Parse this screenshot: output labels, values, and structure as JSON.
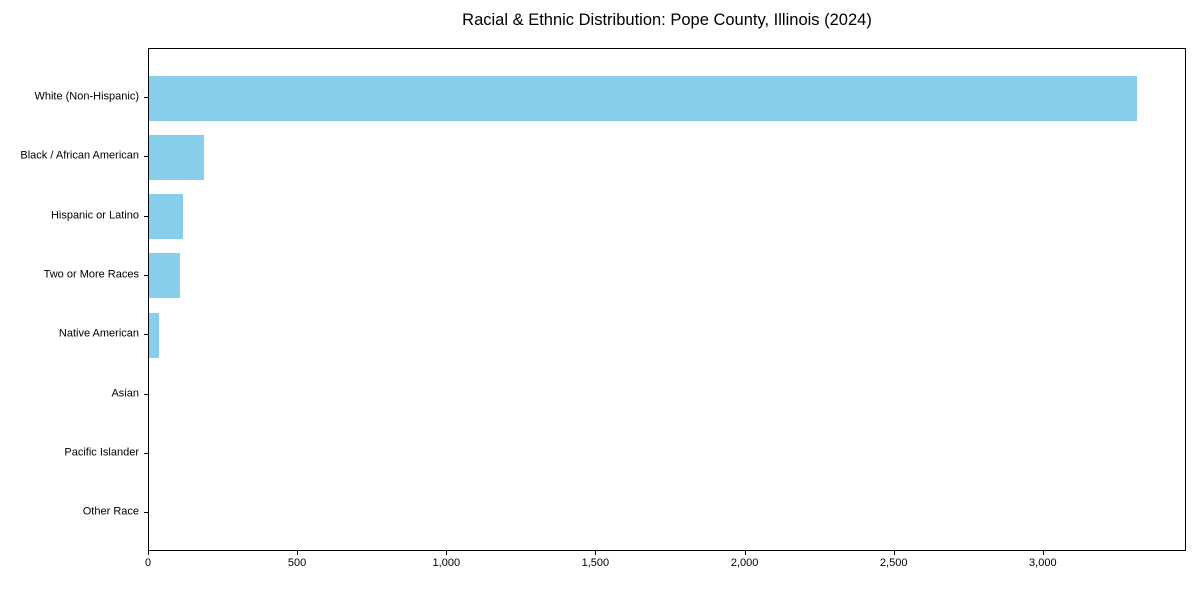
{
  "figure": {
    "background": "#ffffff"
  },
  "chart_data": {
    "type": "bar",
    "orientation": "horizontal",
    "title": "Racial & Ethnic Distribution: Pope County, Illinois (2024)",
    "categories": [
      "White (Non-Hispanic)",
      "Black / African American",
      "Hispanic or Latino",
      "Two or More Races",
      "Native American",
      "Asian",
      "Pacific Islander",
      "Other Race"
    ],
    "values": [
      3313,
      183,
      114,
      105,
      35,
      0,
      0,
      0
    ],
    "bar_color": "#87CEEB",
    "xlabel": "",
    "ylabel": "",
    "xlim": [
      0,
      3480
    ],
    "xticks": [
      0,
      500,
      1000,
      1500,
      2000,
      2500,
      3000
    ],
    "xtick_labels": [
      "0",
      "500",
      "1,000",
      "1,500",
      "2,000",
      "2,500",
      "3,000"
    ],
    "grid": false,
    "legend": "none"
  }
}
